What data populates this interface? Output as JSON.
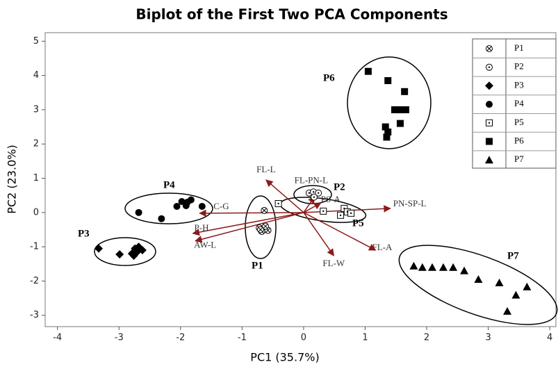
{
  "chart_data": {
    "type": "scatter",
    "title": "Biplot of  the First Two PCA Components",
    "xlabel": "PC1 (35.7%)",
    "ylabel": "PC2 (23.0%)",
    "xlim": [
      -4.2,
      4.1
    ],
    "ylim": [
      -3.33,
      5.25
    ],
    "xticks": [
      -4,
      -3,
      -2,
      -1,
      0,
      1,
      2,
      3,
      4
    ],
    "yticks": [
      -3,
      -2,
      -1,
      0,
      1,
      2,
      3,
      4,
      5
    ],
    "color": "#000000",
    "loading_color": "#8b1a1a",
    "series": [
      {
        "name": "P1",
        "marker": "crossed-circle",
        "x": [
          -0.72,
          -0.65,
          -0.58,
          -0.62,
          -0.68,
          -0.7,
          -0.64
        ],
        "y": [
          -0.45,
          -0.5,
          -0.52,
          -0.4,
          -0.55,
          -0.5,
          0.06
        ]
      },
      {
        "name": "P2",
        "marker": "dotted-circle",
        "x": [
          0.09,
          0.16,
          0.24,
          0.17
        ],
        "y": [
          0.57,
          0.6,
          0.57,
          0.45
        ]
      },
      {
        "name": "P3",
        "marker": "diamond",
        "x": [
          -3.33,
          -2.99,
          -2.79,
          -2.74,
          -2.68,
          -2.62,
          -2.7,
          -2.76
        ],
        "y": [
          -1.05,
          -1.22,
          -1.2,
          -1.05,
          -1.0,
          -1.1,
          -1.14,
          -1.26
        ]
      },
      {
        "name": "P4",
        "marker": "circle",
        "x": [
          -2.68,
          -2.31,
          -2.06,
          -1.98,
          -1.89,
          -1.83,
          -1.65,
          -1.91
        ],
        "y": [
          0.0,
          -0.18,
          0.18,
          0.32,
          0.3,
          0.37,
          0.18,
          0.2
        ]
      },
      {
        "name": "P5",
        "marker": "dotted-square",
        "x": [
          -0.41,
          0.32,
          0.66,
          0.71,
          0.6,
          0.77
        ],
        "y": [
          0.26,
          0.04,
          0.12,
          0.02,
          -0.08,
          -0.02
        ]
      },
      {
        "name": "P6",
        "marker": "square",
        "x": [
          1.05,
          1.37,
          1.64,
          1.48,
          1.56,
          1.66,
          1.57,
          1.33,
          1.37,
          1.35
        ],
        "y": [
          4.12,
          3.85,
          3.53,
          3.0,
          3.0,
          3.0,
          2.6,
          2.5,
          2.35,
          2.2
        ]
      },
      {
        "name": "P7",
        "marker": "triangle",
        "x": [
          1.79,
          1.93,
          2.09,
          2.27,
          2.43,
          2.61,
          2.84,
          3.18,
          3.63,
          3.45,
          3.31
        ],
        "y": [
          -1.56,
          -1.6,
          -1.6,
          -1.6,
          -1.6,
          -1.7,
          -1.95,
          -2.05,
          -2.17,
          -2.41,
          -2.88
        ]
      }
    ],
    "loadings": [
      {
        "name": "FL-L",
        "x": -0.61,
        "y": 0.95
      },
      {
        "name": "FL-PN-L",
        "x": 0.18,
        "y": 0.47
      },
      {
        "name": "PS-A",
        "x": 0.28,
        "y": 0.28
      },
      {
        "name": "PN-SP-L",
        "x": 1.41,
        "y": 0.12
      },
      {
        "name": "FL-A",
        "x": 1.17,
        "y": -1.1
      },
      {
        "name": "FL-W",
        "x": 0.49,
        "y": -1.26
      },
      {
        "name": "C-G",
        "x": -1.69,
        "y": -0.02
      },
      {
        "name": "P-H",
        "x": -1.8,
        "y": -0.61
      },
      {
        "name": "AW-L",
        "x": -1.76,
        "y": -0.83
      }
    ],
    "annotations": [
      "P6",
      "P4",
      "P3",
      "P1",
      "P2",
      "P5",
      "P7"
    ]
  }
}
